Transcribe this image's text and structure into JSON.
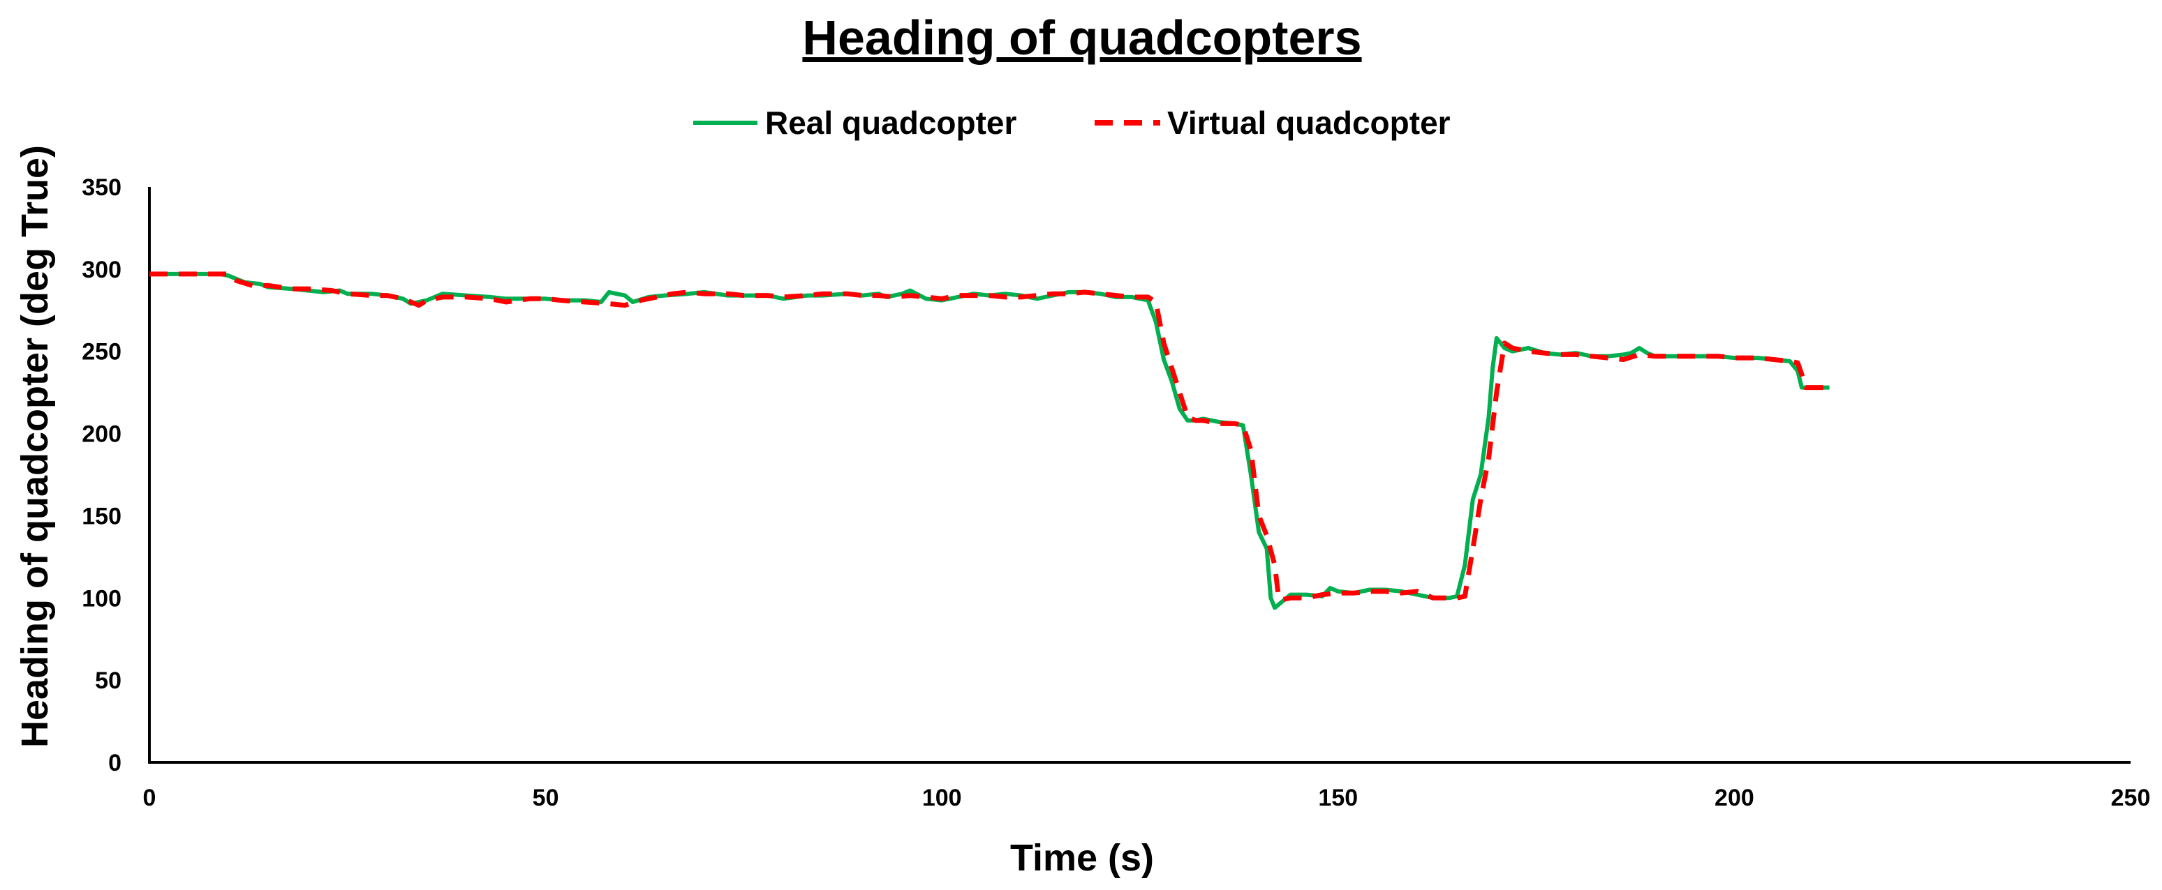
{
  "chart_data": {
    "type": "line",
    "title": "Heading of quadcopters",
    "xlabel": "Time (s)",
    "ylabel": "Heading of quadcopter (deg True)",
    "xlim": [
      0,
      250
    ],
    "ylim": [
      0,
      350
    ],
    "xticks": [
      "0",
      "50",
      "100",
      "150",
      "200",
      "250"
    ],
    "yticks": [
      "0",
      "50",
      "100",
      "150",
      "200",
      "250",
      "300",
      "350"
    ],
    "grid": false,
    "legend_position": "top-center",
    "series": [
      {
        "name": "Real quadcopter",
        "color": "#00b050",
        "style": "solid",
        "points": [
          [
            0,
            297
          ],
          [
            5,
            297
          ],
          [
            9,
            297
          ],
          [
            10,
            296
          ],
          [
            12,
            292
          ],
          [
            14,
            291
          ],
          [
            15,
            289
          ],
          [
            18,
            288
          ],
          [
            20,
            287
          ],
          [
            22,
            286
          ],
          [
            24,
            287
          ],
          [
            25,
            285
          ],
          [
            28,
            285
          ],
          [
            30,
            284
          ],
          [
            32,
            282
          ],
          [
            33,
            279
          ],
          [
            35,
            281
          ],
          [
            37,
            285
          ],
          [
            40,
            284
          ],
          [
            43,
            283
          ],
          [
            45,
            282
          ],
          [
            48,
            282
          ],
          [
            50,
            282
          ],
          [
            52,
            281
          ],
          [
            55,
            281
          ],
          [
            57,
            280
          ],
          [
            58,
            286
          ],
          [
            60,
            284
          ],
          [
            61,
            280
          ],
          [
            63,
            283
          ],
          [
            65,
            284
          ],
          [
            68,
            285
          ],
          [
            70,
            286
          ],
          [
            73,
            284
          ],
          [
            75,
            284
          ],
          [
            78,
            284
          ],
          [
            80,
            282
          ],
          [
            83,
            284
          ],
          [
            85,
            284
          ],
          [
            88,
            285
          ],
          [
            90,
            284
          ],
          [
            92,
            285
          ],
          [
            93,
            283
          ],
          [
            95,
            285
          ],
          [
            96,
            287
          ],
          [
            98,
            282
          ],
          [
            100,
            281
          ],
          [
            102,
            283
          ],
          [
            104,
            285
          ],
          [
            106,
            284
          ],
          [
            108,
            285
          ],
          [
            110,
            284
          ],
          [
            112,
            282
          ],
          [
            114,
            284
          ],
          [
            116,
            286
          ],
          [
            118,
            286
          ],
          [
            120,
            285
          ],
          [
            122,
            283
          ],
          [
            124,
            283
          ],
          [
            125,
            282
          ],
          [
            126,
            281
          ],
          [
            127,
            268
          ],
          [
            128,
            245
          ],
          [
            129,
            232
          ],
          [
            130,
            215
          ],
          [
            131,
            208
          ],
          [
            132,
            208
          ],
          [
            133,
            209
          ],
          [
            135,
            207
          ],
          [
            137,
            206
          ],
          [
            138,
            205
          ],
          [
            139,
            175
          ],
          [
            140,
            140
          ],
          [
            141,
            130
          ],
          [
            141.5,
            100
          ],
          [
            142,
            94
          ],
          [
            143,
            98
          ],
          [
            144,
            102
          ],
          [
            146,
            102
          ],
          [
            148,
            101
          ],
          [
            149,
            106
          ],
          [
            150,
            104
          ],
          [
            152,
            103
          ],
          [
            154,
            105
          ],
          [
            156,
            105
          ],
          [
            158,
            104
          ],
          [
            160,
            102
          ],
          [
            162,
            100
          ],
          [
            164,
            100
          ],
          [
            165,
            101
          ],
          [
            166,
            120
          ],
          [
            167,
            160
          ],
          [
            168,
            175
          ],
          [
            169,
            210
          ],
          [
            169.5,
            240
          ],
          [
            170,
            258
          ],
          [
            171,
            252
          ],
          [
            172,
            250
          ],
          [
            174,
            252
          ],
          [
            176,
            249
          ],
          [
            178,
            248
          ],
          [
            180,
            249
          ],
          [
            182,
            247
          ],
          [
            184,
            247
          ],
          [
            186,
            248
          ],
          [
            187,
            249
          ],
          [
            188,
            252
          ],
          [
            189,
            249
          ],
          [
            190,
            247
          ],
          [
            192,
            247
          ],
          [
            195,
            247
          ],
          [
            198,
            247
          ],
          [
            200,
            246
          ],
          [
            203,
            246
          ],
          [
            205,
            245
          ],
          [
            207,
            244
          ],
          [
            208,
            238
          ],
          [
            208.5,
            228
          ],
          [
            210,
            228
          ],
          [
            212,
            228
          ]
        ]
      },
      {
        "name": "Virtual quadcopter",
        "color": "#ff0000",
        "style": "dashed",
        "points": [
          [
            0,
            297
          ],
          [
            5,
            297
          ],
          [
            9,
            297
          ],
          [
            10,
            297
          ],
          [
            11,
            293
          ],
          [
            13,
            290
          ],
          [
            15,
            290
          ],
          [
            18,
            288
          ],
          [
            20,
            288
          ],
          [
            23,
            287
          ],
          [
            25,
            285
          ],
          [
            28,
            284
          ],
          [
            30,
            284
          ],
          [
            32,
            282
          ],
          [
            34,
            278
          ],
          [
            35,
            281
          ],
          [
            37,
            283
          ],
          [
            40,
            283
          ],
          [
            43,
            282
          ],
          [
            45,
            280
          ],
          [
            48,
            282
          ],
          [
            50,
            282
          ],
          [
            52,
            281
          ],
          [
            55,
            280
          ],
          [
            58,
            279
          ],
          [
            60,
            278
          ],
          [
            62,
            281
          ],
          [
            64,
            283
          ],
          [
            66,
            285
          ],
          [
            68,
            286
          ],
          [
            70,
            285
          ],
          [
            73,
            285
          ],
          [
            75,
            284
          ],
          [
            78,
            284
          ],
          [
            80,
            283
          ],
          [
            83,
            284
          ],
          [
            85,
            285
          ],
          [
            88,
            285
          ],
          [
            90,
            284
          ],
          [
            92,
            284
          ],
          [
            94,
            283
          ],
          [
            96,
            284
          ],
          [
            98,
            283
          ],
          [
            100,
            282
          ],
          [
            102,
            284
          ],
          [
            104,
            284
          ],
          [
            106,
            284
          ],
          [
            108,
            283
          ],
          [
            110,
            283
          ],
          [
            112,
            284
          ],
          [
            114,
            285
          ],
          [
            116,
            285
          ],
          [
            118,
            286
          ],
          [
            120,
            285
          ],
          [
            122,
            284
          ],
          [
            124,
            283
          ],
          [
            126,
            283
          ],
          [
            127,
            280
          ],
          [
            128,
            255
          ],
          [
            129,
            240
          ],
          [
            130,
            225
          ],
          [
            131,
            210
          ],
          [
            132,
            208
          ],
          [
            133,
            208
          ],
          [
            135,
            206
          ],
          [
            137,
            206
          ],
          [
            138,
            205
          ],
          [
            139,
            190
          ],
          [
            140,
            150
          ],
          [
            141,
            138
          ],
          [
            142,
            120
          ],
          [
            142.5,
            100
          ],
          [
            143,
            99
          ],
          [
            144,
            100
          ],
          [
            146,
            100
          ],
          [
            148,
            102
          ],
          [
            150,
            103
          ],
          [
            152,
            103
          ],
          [
            154,
            104
          ],
          [
            156,
            104
          ],
          [
            158,
            103
          ],
          [
            160,
            104
          ],
          [
            162,
            100
          ],
          [
            164,
            100
          ],
          [
            165,
            100
          ],
          [
            166,
            101
          ],
          [
            167,
            130
          ],
          [
            168,
            160
          ],
          [
            169,
            185
          ],
          [
            170,
            225
          ],
          [
            171,
            255
          ],
          [
            172,
            252
          ],
          [
            174,
            250
          ],
          [
            176,
            249
          ],
          [
            178,
            248
          ],
          [
            180,
            248
          ],
          [
            182,
            247
          ],
          [
            184,
            246
          ],
          [
            186,
            245
          ],
          [
            188,
            248
          ],
          [
            190,
            247
          ],
          [
            192,
            247
          ],
          [
            195,
            247
          ],
          [
            198,
            247
          ],
          [
            200,
            246
          ],
          [
            203,
            246
          ],
          [
            205,
            245
          ],
          [
            207,
            244
          ],
          [
            208,
            243
          ],
          [
            208.5,
            236
          ],
          [
            209,
            228
          ],
          [
            210,
            228
          ],
          [
            212,
            228
          ]
        ]
      }
    ]
  }
}
